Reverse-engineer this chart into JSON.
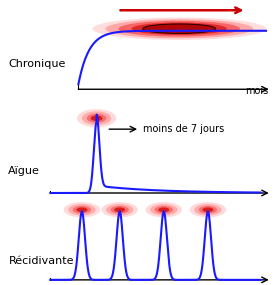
{
  "bg_color": "#ffffff",
  "blue_color": "#1a1aff",
  "text_color": "#000000",
  "labels": {
    "chronique": "Chronique",
    "aigue": "Aïgue",
    "recidivante": "Récidivante",
    "mois": "mois",
    "moins7jours": "moins de 7 jours"
  }
}
